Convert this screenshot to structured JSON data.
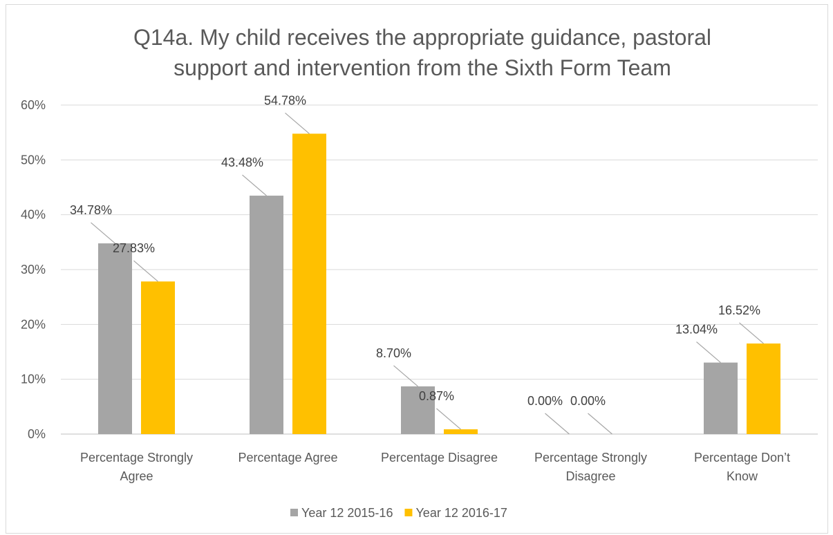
{
  "chart_data": {
    "type": "bar",
    "title_lines": [
      "Q14a. My child receives the appropriate guidance, pastoral",
      "support and intervention from the Sixth Form Team"
    ],
    "categories": [
      [
        "Percentage Strongly",
        "Agree"
      ],
      [
        "Percentage Agree"
      ],
      [
        "Percentage Disagree"
      ],
      [
        "Percentage Strongly",
        "Disagree"
      ],
      [
        "Percentage Don’t",
        "Know"
      ]
    ],
    "series": [
      {
        "name": "Year 12 2015-16",
        "color": "#a5a5a5",
        "values": [
          34.78,
          43.48,
          8.7,
          0.0,
          13.04
        ],
        "labels": [
          "34.78%",
          "43.48%",
          "8.70%",
          "0.00%",
          "13.04%"
        ]
      },
      {
        "name": "Year 12 2016-17",
        "color": "#ffc000",
        "values": [
          27.83,
          54.78,
          0.87,
          0.0,
          16.52
        ],
        "labels": [
          "27.83%",
          "54.78%",
          "0.87%",
          "0.00%",
          "16.52%"
        ]
      }
    ],
    "ylim": [
      0,
      60
    ],
    "yticks": [
      {
        "value": 0,
        "label": "0%"
      },
      {
        "value": 10,
        "label": "10%"
      },
      {
        "value": 20,
        "label": "20%"
      },
      {
        "value": 30,
        "label": "30%"
      },
      {
        "value": 40,
        "label": "40%"
      },
      {
        "value": 50,
        "label": "50%"
      },
      {
        "value": 60,
        "label": "60%"
      }
    ],
    "grid": true,
    "legend_position": "bottom"
  }
}
